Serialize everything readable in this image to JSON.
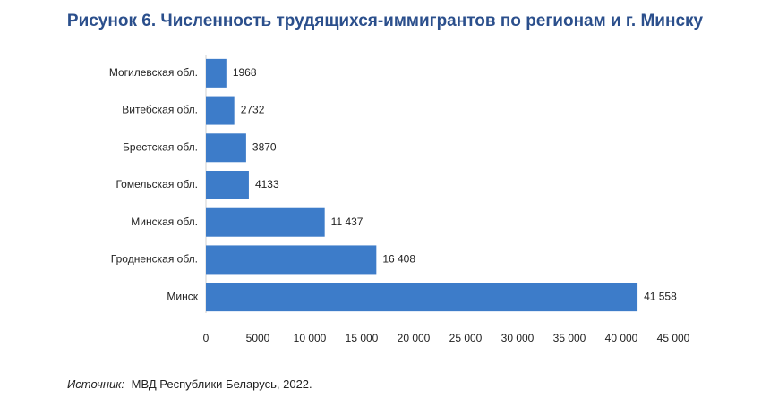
{
  "chart_data": {
    "type": "bar",
    "orientation": "horizontal",
    "title": "Рисунок 6. Численность трудящихся-иммигрантов по регионам и г. Минску",
    "categories": [
      "Могилевская обл.",
      "Витебская обл.",
      "Брестская обл.",
      "Гомельская обл.",
      "Минская обл.",
      "Гродненская обл.",
      "Минск"
    ],
    "values": [
      1968,
      2732,
      3870,
      4133,
      11437,
      16408,
      41558
    ],
    "value_labels": [
      "1968",
      "2732",
      "3870",
      "4133",
      "11 437",
      "16 408",
      "41 558"
    ],
    "color": "#3d7cc9",
    "xlim": [
      0,
      45000
    ],
    "xticks": [
      0,
      5000,
      {
        "value": 10000,
        "label": "10 000"
      },
      {
        "value": 15000,
        "label": "15 000"
      },
      {
        "value": 20000,
        "label": "20 000"
      },
      {
        "value": 25000,
        "label": "25 000"
      },
      {
        "value": 30000,
        "label": "30 000"
      },
      {
        "value": 35000,
        "label": "35 000"
      },
      {
        "value": 40000,
        "label": "40 000"
      },
      {
        "value": 45000,
        "label": "45 000"
      }
    ],
    "grid": false,
    "source_label": "Источник:",
    "source_text": "МВД Республики Беларусь, 2022."
  }
}
